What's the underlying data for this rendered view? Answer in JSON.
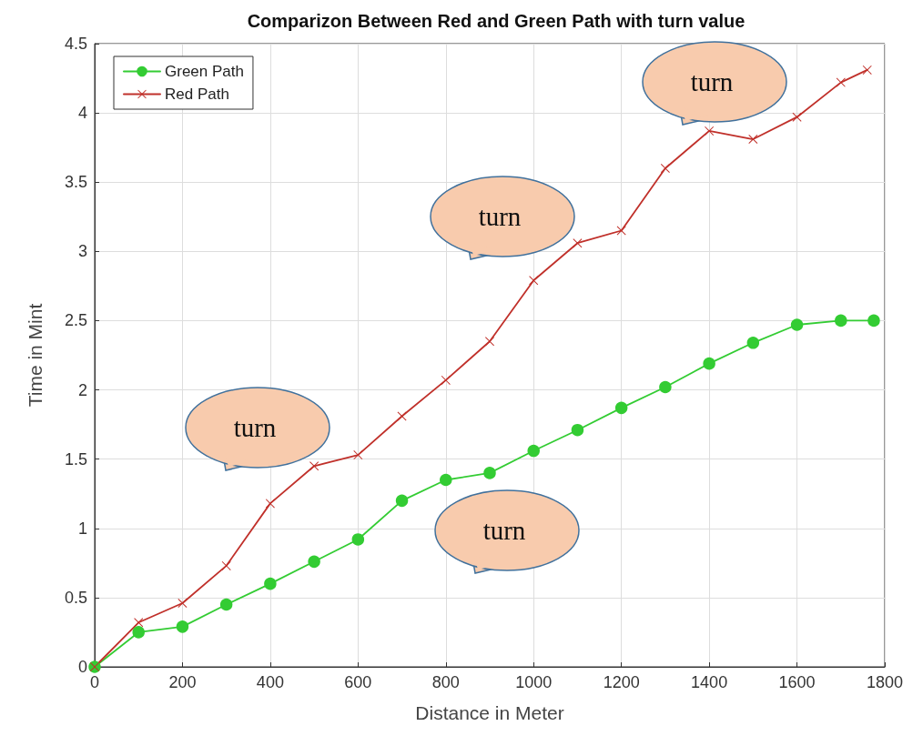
{
  "chart_data": {
    "type": "line",
    "title": "Comparizon Between Red and Green Path with turn value",
    "xlabel": "Distance in Meter",
    "ylabel": "Time in Mint",
    "xlim": [
      0,
      1800
    ],
    "xticks": [
      0,
      200,
      400,
      600,
      800,
      1000,
      1200,
      1400,
      1600,
      1800
    ],
    "ylim": [
      0,
      4.5
    ],
    "yticks": [
      0,
      0.5,
      1,
      1.5,
      2,
      2.5,
      3,
      3.5,
      4,
      4.5
    ],
    "grid": true,
    "legend": "top left",
    "series": [
      {
        "name": "Green Path",
        "color": "#33cc33",
        "marker": "circle",
        "x": [
          0,
          100,
          200,
          300,
          400,
          500,
          600,
          700,
          800,
          900,
          1000,
          1100,
          1200,
          1300,
          1400,
          1500,
          1600,
          1700,
          1775
        ],
        "values": [
          0,
          0.25,
          0.29,
          0.45,
          0.6,
          0.76,
          0.92,
          1.2,
          1.35,
          1.4,
          1.56,
          1.71,
          1.87,
          2.02,
          2.19,
          2.34,
          2.47,
          2.5,
          2.5
        ]
      },
      {
        "name": "Red Path",
        "color": "#c0302a",
        "marker": "cross",
        "x": [
          0,
          100,
          200,
          300,
          400,
          500,
          600,
          700,
          800,
          900,
          1000,
          1100,
          1200,
          1300,
          1400,
          1500,
          1600,
          1700,
          1760
        ],
        "values": [
          0,
          0.32,
          0.46,
          0.73,
          1.18,
          1.45,
          1.53,
          1.81,
          2.07,
          2.35,
          2.79,
          3.06,
          3.15,
          3.6,
          3.87,
          3.81,
          3.97,
          4.22,
          4.31
        ]
      }
    ],
    "annotations": [
      "turn",
      "turn",
      "turn",
      "turn"
    ]
  }
}
